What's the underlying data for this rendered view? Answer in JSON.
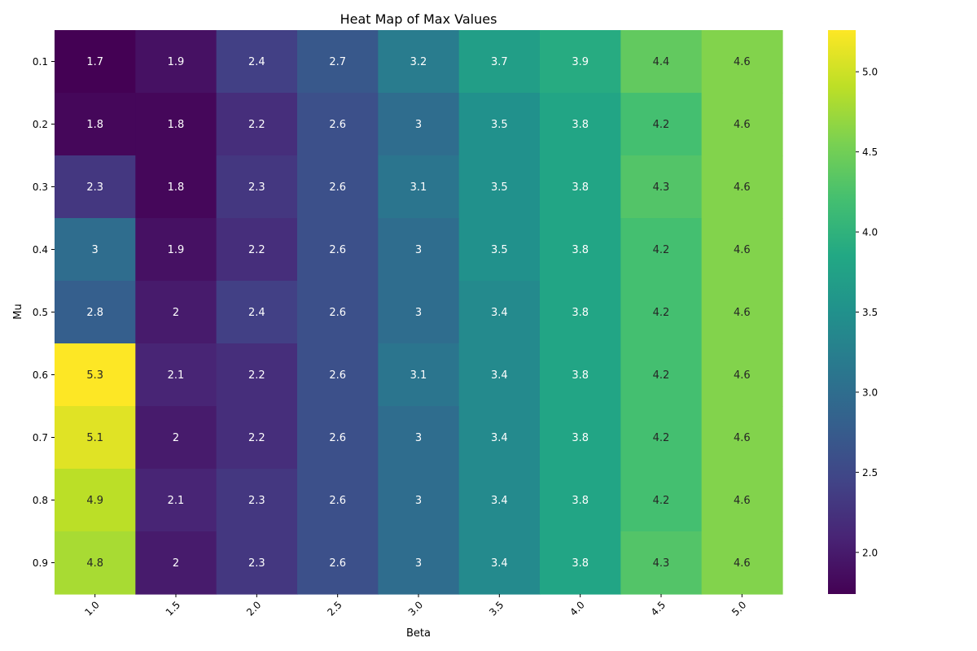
{
  "chart_data": {
    "type": "heatmap",
    "title": "Heat Map of Max Values",
    "xlabel": "Beta",
    "ylabel": "Mu",
    "x": [
      "1.0",
      "1.5",
      "2.0",
      "2.5",
      "3.0",
      "3.5",
      "4.0",
      "4.5",
      "5.0"
    ],
    "y": [
      "0.1",
      "0.2",
      "0.3",
      "0.4",
      "0.5",
      "0.6",
      "0.7",
      "0.8",
      "0.9"
    ],
    "values": [
      [
        1.7,
        1.9,
        2.4,
        2.7,
        3.2,
        3.7,
        3.9,
        4.4,
        4.6
      ],
      [
        1.8,
        1.8,
        2.2,
        2.6,
        3,
        3.5,
        3.8,
        4.2,
        4.6
      ],
      [
        2.3,
        1.8,
        2.3,
        2.6,
        3.1,
        3.5,
        3.8,
        4.3,
        4.6
      ],
      [
        3,
        1.9,
        2.2,
        2.6,
        3,
        3.5,
        3.8,
        4.2,
        4.6
      ],
      [
        2.8,
        2,
        2.4,
        2.6,
        3,
        3.4,
        3.8,
        4.2,
        4.6
      ],
      [
        5.3,
        2.1,
        2.2,
        2.6,
        3.1,
        3.4,
        3.8,
        4.2,
        4.6
      ],
      [
        5.1,
        2,
        2.2,
        2.6,
        3,
        3.4,
        3.8,
        4.2,
        4.6
      ],
      [
        4.9,
        2.1,
        2.3,
        2.6,
        3,
        3.4,
        3.8,
        4.2,
        4.6
      ],
      [
        4.8,
        2,
        2.3,
        2.6,
        3,
        3.4,
        3.8,
        4.3,
        4.6
      ]
    ],
    "colormap": "viridis",
    "colorbar": {
      "range": [
        1.74,
        5.26
      ],
      "ticks": [
        "2.0",
        "2.5",
        "3.0",
        "3.5",
        "4.0",
        "4.5",
        "5.0"
      ]
    },
    "grid": false,
    "annotations": true,
    "xtick_rotation": 45
  }
}
